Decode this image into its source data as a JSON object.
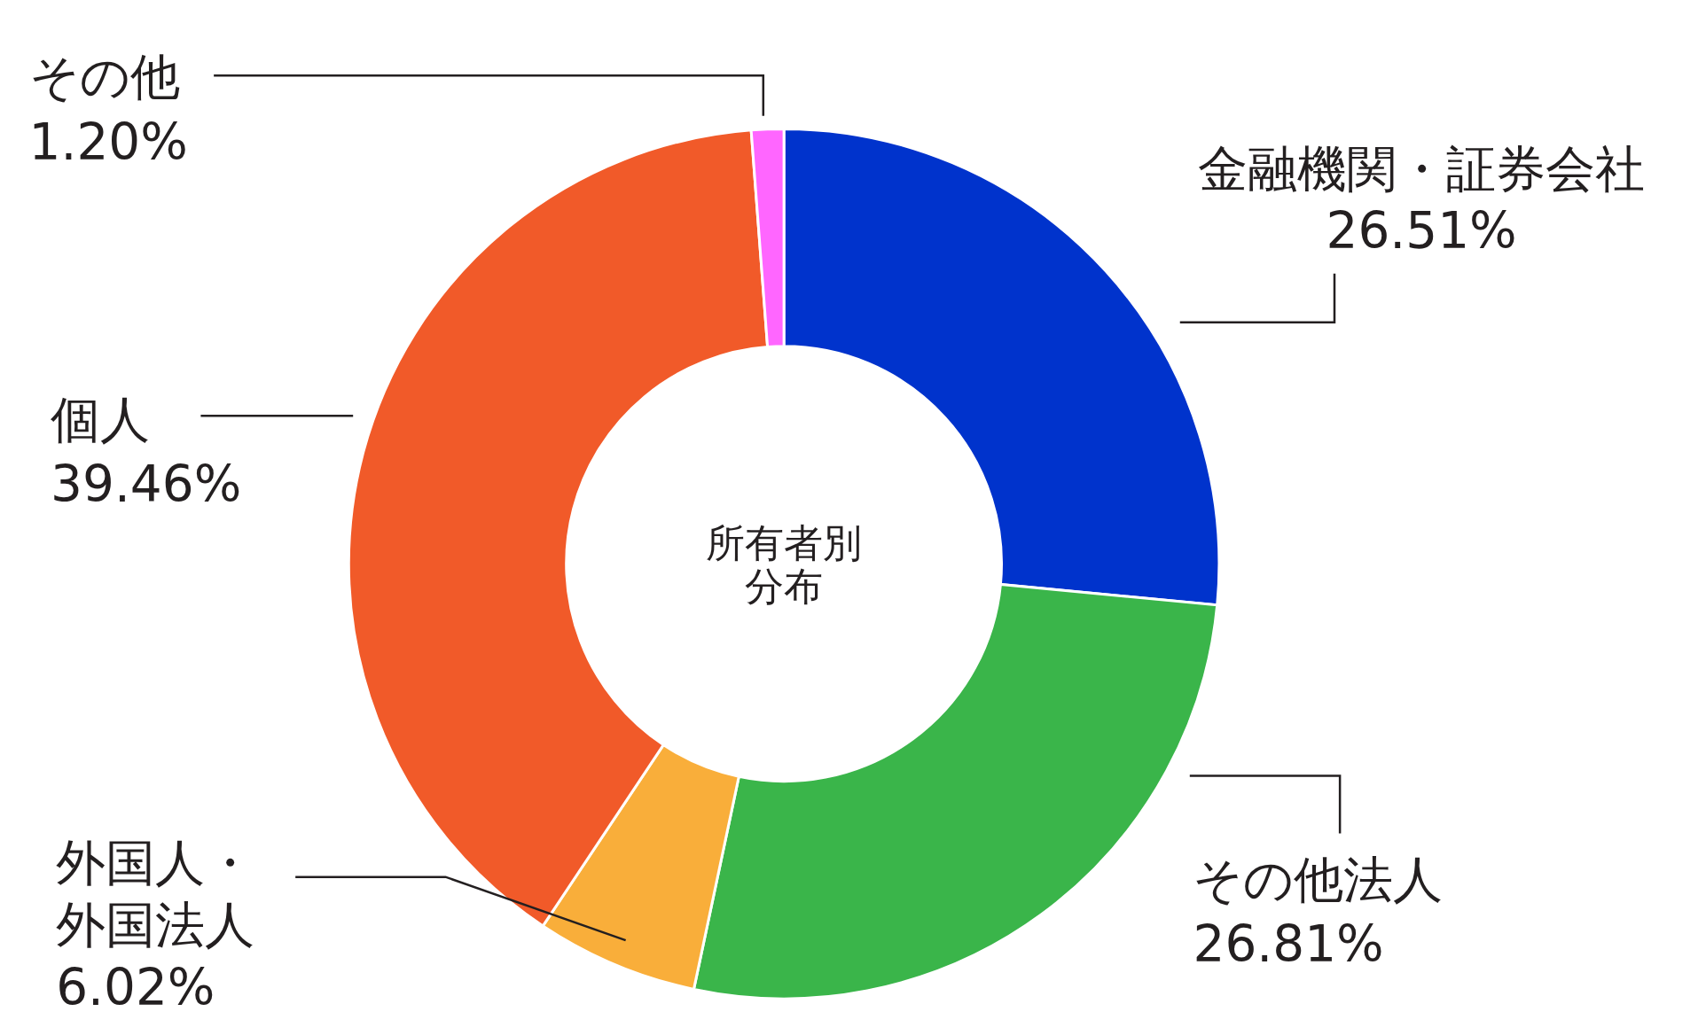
{
  "chart_data": {
    "type": "donut",
    "title": "所有者別分布",
    "categories": [
      "金融機関・証券会社",
      "その他法人",
      "外国人・外国法人",
      "個人",
      "その他"
    ],
    "values": [
      26.51,
      26.81,
      6.02,
      39.46,
      1.2
    ],
    "value_labels": [
      "26.51%",
      "26.81%",
      "6.02%",
      "39.46%",
      "1.20%"
    ],
    "colors": [
      "#0033cc",
      "#3ab54a",
      "#f9ae3a",
      "#f15a29",
      "#ff66ff"
    ]
  }
}
